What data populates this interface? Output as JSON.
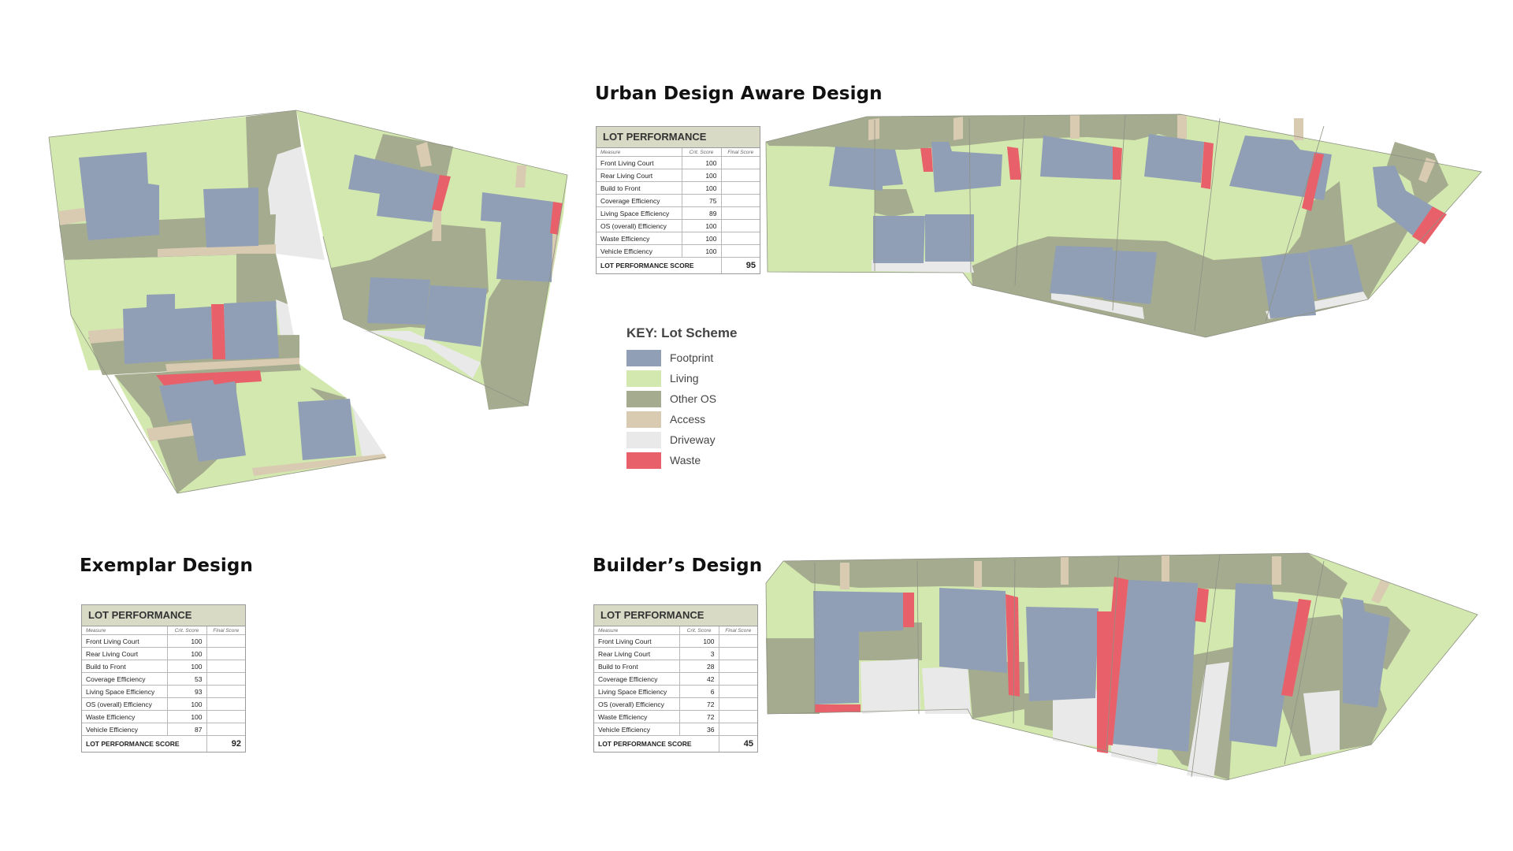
{
  "titles": {
    "urban": "Urban Design Aware Design",
    "exemplar": "Exemplar Design",
    "builder": "Builder’s Design"
  },
  "colors": {
    "footprint": "#909fb5",
    "living": "#d3e8ae",
    "other_os": "#a5ab8f",
    "access": "#d9cab2",
    "driveway": "#e9e9e9",
    "waste": "#e8616a"
  },
  "key": {
    "title": "KEY: Lot Scheme",
    "items": [
      {
        "label": "Footprint",
        "color": "#909fb5"
      },
      {
        "label": "Living",
        "color": "#d3e8ae"
      },
      {
        "label": "Other OS",
        "color": "#a5ab8f"
      },
      {
        "label": "Access",
        "color": "#d9cab2"
      },
      {
        "label": "Driveway",
        "color": "#e9e9e9"
      },
      {
        "label": "Waste",
        "color": "#e8616a"
      }
    ]
  },
  "tables": {
    "header": "LOT PERFORMANCE",
    "col_measure": "Measure",
    "col_crit": "Crit. Score",
    "col_final": "Final Score",
    "total_label": "LOT PERFORMANCE SCORE",
    "urban": {
      "rows": [
        {
          "measure": "Front Living Court",
          "crit": "100"
        },
        {
          "measure": "Rear Living Court",
          "crit": "100"
        },
        {
          "measure": "Build to Front",
          "crit": "100"
        },
        {
          "measure": "Coverage Efficiency",
          "crit": "75"
        },
        {
          "measure": "Living Space Efficiency",
          "crit": "89"
        },
        {
          "measure": "OS (overall) Efficiency",
          "crit": "100"
        },
        {
          "measure": "Waste Efficiency",
          "crit": "100"
        },
        {
          "measure": "Vehicle Efficiency",
          "crit": "100"
        }
      ],
      "score": "95"
    },
    "exemplar": {
      "rows": [
        {
          "measure": "Front Living Court",
          "crit": "100"
        },
        {
          "measure": "Rear Living Court",
          "crit": "100"
        },
        {
          "measure": "Build to Front",
          "crit": "100"
        },
        {
          "measure": "Coverage Efficiency",
          "crit": "53"
        },
        {
          "measure": "Living Space Efficiency",
          "crit": "93"
        },
        {
          "measure": "OS (overall) Efficiency",
          "crit": "100"
        },
        {
          "measure": "Waste Efficiency",
          "crit": "100"
        },
        {
          "measure": "Vehicle Efficiency",
          "crit": "87"
        }
      ],
      "score": "92"
    },
    "builder": {
      "rows": [
        {
          "measure": "Front Living Court",
          "crit": "100"
        },
        {
          "measure": "Rear Living Court",
          "crit": "3"
        },
        {
          "measure": "Build to Front",
          "crit": "28"
        },
        {
          "measure": "Coverage Efficiency",
          "crit": "42"
        },
        {
          "measure": "Living Space Efficiency",
          "crit": "6"
        },
        {
          "measure": "OS (overall) Efficiency",
          "crit": "72"
        },
        {
          "measure": "Waste Efficiency",
          "crit": "72"
        },
        {
          "measure": "Vehicle Efficiency",
          "crit": "36"
        }
      ],
      "score": "45"
    }
  }
}
